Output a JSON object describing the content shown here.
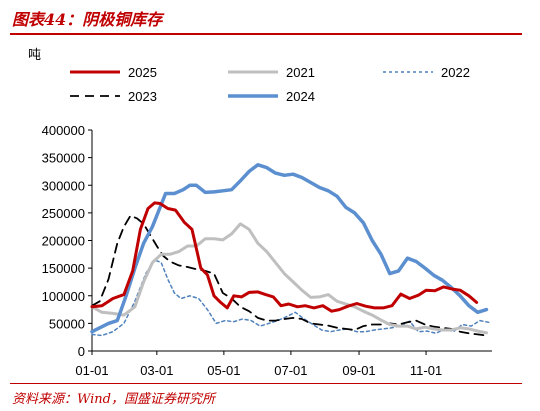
{
  "header": {
    "title": "图表44：阴极铜库存",
    "source": "资料来源：Wind，国盛证券研究所"
  },
  "chart_data": {
    "type": "line",
    "title": "图表44：阴极铜库存",
    "ylabel": "吨",
    "ylim": [
      0,
      400000
    ],
    "yticks": [
      "0",
      "50000",
      "100000",
      "150000",
      "200000",
      "250000",
      "300000",
      "350000",
      "400000"
    ],
    "xticks": [
      "01-01",
      "03-01",
      "05-01",
      "07-01",
      "09-01",
      "11-01"
    ],
    "xtick_days": [
      1,
      60,
      121,
      182,
      244,
      305
    ],
    "xlim_days": [
      1,
      365
    ],
    "grid": false,
    "legend_position": "top",
    "series": [
      {
        "name": "2025",
        "color": "#c00000",
        "dash": "solid",
        "width": 3,
        "x": [
          1,
          10,
          20,
          30,
          38,
          45,
          52,
          58,
          63,
          70,
          77,
          85,
          92,
          100,
          106,
          112,
          118,
          124,
          130,
          137,
          144,
          152,
          159,
          166,
          173,
          180,
          188,
          195,
          203,
          211,
          219,
          226,
          234,
          242,
          250,
          258,
          266,
          274,
          282,
          290,
          298,
          305,
          313,
          321,
          329,
          336,
          344,
          351
        ],
        "y": [
          80000,
          82000,
          95000,
          102000,
          145000,
          220000,
          258000,
          268000,
          267000,
          258000,
          255000,
          233000,
          220000,
          150000,
          138000,
          100000,
          88000,
          78000,
          100000,
          98000,
          106000,
          107000,
          102000,
          98000,
          82000,
          85000,
          80000,
          82000,
          78000,
          82000,
          72000,
          75000,
          81000,
          86000,
          81000,
          78000,
          78000,
          82000,
          103000,
          95000,
          101000,
          110000,
          109000,
          116000,
          112000,
          110000,
          100000,
          88000
        ]
      },
      {
        "name": "2021",
        "color": "#bfbfbf",
        "dash": "solid",
        "width": 3,
        "x": [
          1,
          10,
          20,
          30,
          40,
          48,
          56,
          64,
          72,
          80,
          88,
          96,
          104,
          112,
          120,
          128,
          136,
          144,
          152,
          160,
          168,
          176,
          184,
          192,
          200,
          208,
          216,
          224,
          232,
          240,
          248,
          256,
          264,
          272,
          280,
          288,
          296,
          304,
          312,
          320,
          328,
          336,
          344,
          352,
          360
        ],
        "y": [
          80000,
          70000,
          68000,
          65000,
          80000,
          125000,
          160000,
          175000,
          175000,
          180000,
          190000,
          190000,
          203000,
          203000,
          201000,
          212000,
          230000,
          220000,
          195000,
          180000,
          160000,
          140000,
          125000,
          110000,
          97000,
          98000,
          102000,
          90000,
          85000,
          80000,
          72000,
          65000,
          56000,
          48000,
          45000,
          45000,
          40000,
          43000,
          40000,
          38000,
          38000,
          42000,
          40000,
          36000,
          33000
        ]
      },
      {
        "name": "2022",
        "color": "#4f81bd",
        "dash": "3,3",
        "width": 1.5,
        "x": [
          1,
          10,
          20,
          30,
          40,
          50,
          58,
          64,
          70,
          76,
          82,
          90,
          98,
          106,
          114,
          122,
          130,
          138,
          146,
          154,
          162,
          170,
          178,
          186,
          194,
          202,
          210,
          218,
          226,
          234,
          242,
          250,
          258,
          266,
          274,
          282,
          290,
          298,
          306,
          314,
          322,
          330,
          338,
          346,
          354,
          362
        ],
        "y": [
          30000,
          28000,
          35000,
          50000,
          90000,
          140000,
          165000,
          160000,
          130000,
          105000,
          95000,
          100000,
          95000,
          75000,
          50000,
          55000,
          53000,
          58000,
          55000,
          45000,
          50000,
          55000,
          62000,
          70000,
          58000,
          48000,
          38000,
          35000,
          38000,
          40000,
          35000,
          35000,
          38000,
          40000,
          42000,
          46000,
          54000,
          35000,
          36000,
          32000,
          40000,
          35000,
          48000,
          45000,
          55000,
          52000
        ]
      },
      {
        "name": "2023",
        "color": "#000000",
        "dash": "9,6",
        "width": 1.8,
        "x": [
          1,
          8,
          16,
          24,
          30,
          36,
          42,
          48,
          54,
          60,
          66,
          72,
          80,
          88,
          96,
          104,
          112,
          120,
          128,
          136,
          144,
          152,
          160,
          168,
          176,
          184,
          192,
          200,
          208,
          216,
          224,
          232,
          240,
          248,
          256,
          264,
          272,
          280,
          288,
          296,
          304,
          312,
          320,
          328,
          336,
          344,
          352,
          360
        ],
        "y": [
          82000,
          90000,
          130000,
          195000,
          225000,
          245000,
          240000,
          230000,
          210000,
          190000,
          172000,
          162000,
          155000,
          152000,
          148000,
          145000,
          140000,
          105000,
          95000,
          80000,
          72000,
          60000,
          55000,
          55000,
          58000,
          60000,
          58000,
          50000,
          48000,
          46000,
          42000,
          40000,
          38000,
          45000,
          48000,
          48000,
          50000,
          48000,
          52000,
          55000,
          48000,
          44000,
          42000,
          40000,
          35000,
          32000,
          30000,
          28000
        ]
      },
      {
        "name": "2024",
        "color": "#5b8fcf",
        "dash": "solid",
        "width": 3.5,
        "x": [
          1,
          8,
          16,
          24,
          32,
          40,
          48,
          56,
          62,
          68,
          76,
          84,
          90,
          96,
          104,
          112,
          120,
          128,
          136,
          144,
          152,
          160,
          168,
          176,
          184,
          192,
          200,
          208,
          216,
          224,
          232,
          240,
          248,
          256,
          264,
          272,
          280,
          288,
          296,
          304,
          312,
          320,
          328,
          336,
          344,
          352,
          360
        ],
        "y": [
          35000,
          42000,
          50000,
          55000,
          100000,
          150000,
          195000,
          225000,
          255000,
          285000,
          285000,
          292000,
          300000,
          300000,
          287000,
          288000,
          290000,
          292000,
          308000,
          325000,
          337000,
          332000,
          322000,
          318000,
          320000,
          314000,
          305000,
          296000,
          290000,
          280000,
          260000,
          250000,
          232000,
          200000,
          175000,
          140000,
          145000,
          168000,
          162000,
          150000,
          137000,
          128000,
          115000,
          100000,
          82000,
          70000,
          75000
        ]
      }
    ]
  }
}
